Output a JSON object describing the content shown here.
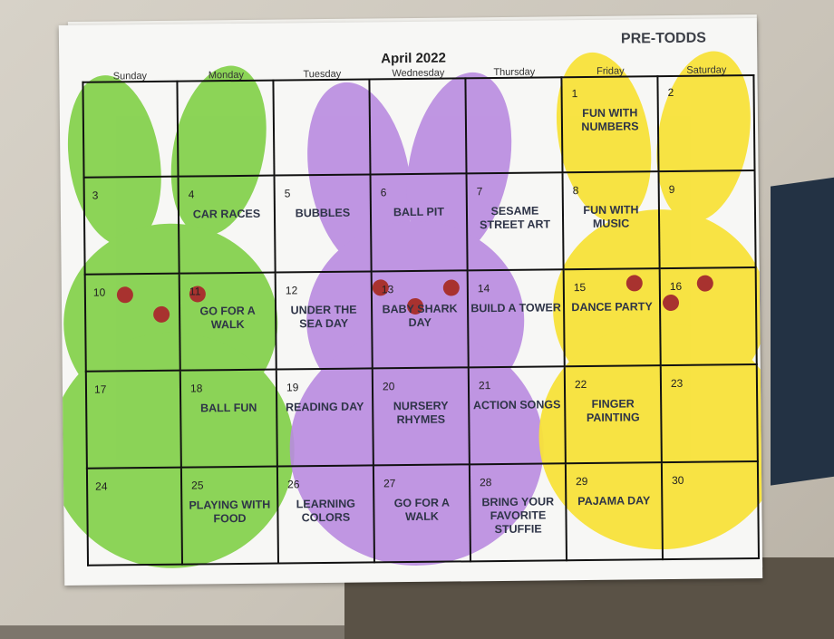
{
  "calendar": {
    "title": "April 2022",
    "brand": "PRE-TODDS",
    "days": [
      "Sunday",
      "Monday",
      "Tuesday",
      "Wednesday",
      "Thursday",
      "Friday",
      "Saturday"
    ],
    "weeks": [
      [
        {
          "n": "",
          "a": ""
        },
        {
          "n": "",
          "a": ""
        },
        {
          "n": "",
          "a": ""
        },
        {
          "n": "",
          "a": ""
        },
        {
          "n": "",
          "a": ""
        },
        {
          "n": "1",
          "a": "FUN WITH NUMBERS"
        },
        {
          "n": "2",
          "a": ""
        }
      ],
      [
        {
          "n": "3",
          "a": ""
        },
        {
          "n": "4",
          "a": "CAR RACES"
        },
        {
          "n": "5",
          "a": "BUBBLES"
        },
        {
          "n": "6",
          "a": "BALL PIT"
        },
        {
          "n": "7",
          "a": "SESAME STREET ART"
        },
        {
          "n": "8",
          "a": "FUN WITH MUSIC"
        },
        {
          "n": "9",
          "a": ""
        }
      ],
      [
        {
          "n": "10",
          "a": ""
        },
        {
          "n": "11",
          "a": "GO FOR A WALK"
        },
        {
          "n": "12",
          "a": "UNDER THE SEA DAY"
        },
        {
          "n": "13",
          "a": "BABY SHARK DAY"
        },
        {
          "n": "14",
          "a": "BUILD A TOWER"
        },
        {
          "n": "15",
          "a": "DANCE PARTY"
        },
        {
          "n": "16",
          "a": ""
        }
      ],
      [
        {
          "n": "17",
          "a": ""
        },
        {
          "n": "18",
          "a": "BALL FUN"
        },
        {
          "n": "19",
          "a": "READING DAY"
        },
        {
          "n": "20",
          "a": "NURSERY RHYMES"
        },
        {
          "n": "21",
          "a": "ACTION SONGS"
        },
        {
          "n": "22",
          "a": "FINGER PAINTING"
        },
        {
          "n": "23",
          "a": ""
        }
      ],
      [
        {
          "n": "24",
          "a": ""
        },
        {
          "n": "25",
          "a": "PLAYING WITH FOOD"
        },
        {
          "n": "26",
          "a": "LEARNING COLORS"
        },
        {
          "n": "27",
          "a": "GO FOR A WALK"
        },
        {
          "n": "28",
          "a": "BRING YOUR FAVORITE STUFFIE"
        },
        {
          "n": "29",
          "a": "PAJAMA DAY"
        },
        {
          "n": "30",
          "a": ""
        }
      ]
    ]
  },
  "colors": {
    "green": "#86d24f",
    "purple": "#b98be0",
    "yellow": "#f8e23a",
    "eye": "#a8322f"
  },
  "icons": [
    "green-bunny-icon",
    "purple-bunny-icon",
    "yellow-bunny-icon"
  ]
}
